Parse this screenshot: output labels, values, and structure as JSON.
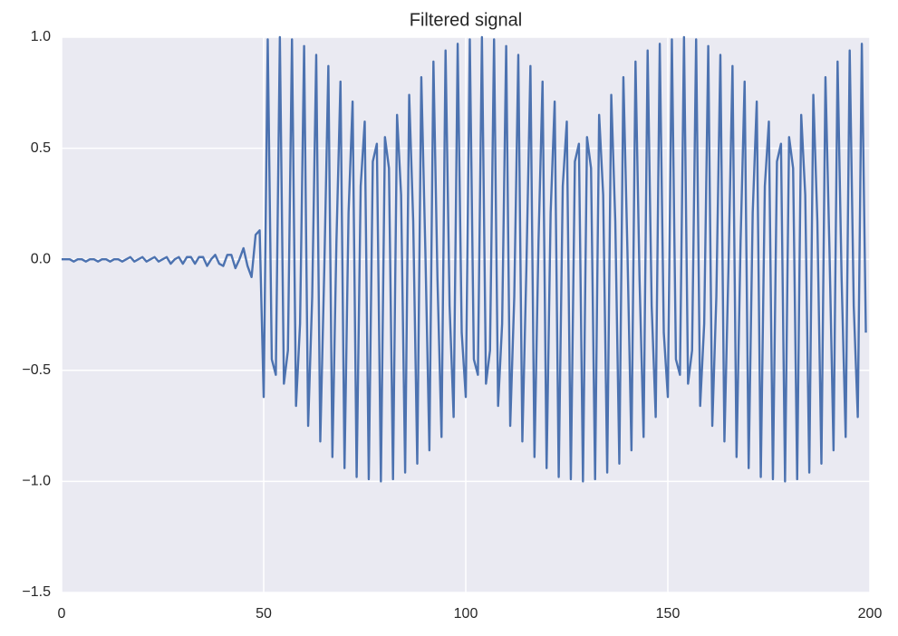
{
  "chart_data": {
    "type": "line",
    "title": "Filtered signal",
    "x": [
      0,
      1,
      2,
      3,
      4,
      5,
      6,
      7,
      8,
      9,
      10,
      11,
      12,
      13,
      14,
      15,
      16,
      17,
      18,
      19,
      20,
      21,
      22,
      23,
      24,
      25,
      26,
      27,
      28,
      29,
      30,
      31,
      32,
      33,
      34,
      35,
      36,
      37,
      38,
      39,
      40,
      41,
      42,
      43,
      44,
      45,
      46,
      47,
      48,
      49,
      50,
      51,
      52,
      53,
      54,
      55,
      56,
      57,
      58,
      59,
      60,
      61,
      62,
      63,
      64,
      65,
      66,
      67,
      68,
      69,
      70,
      71,
      72,
      73,
      74,
      75,
      76,
      77,
      78,
      79,
      80,
      81,
      82,
      83,
      84,
      85,
      86,
      87,
      88,
      89,
      90,
      91,
      92,
      93,
      94,
      95,
      96,
      97,
      98,
      99,
      100,
      101,
      102,
      103,
      104,
      105,
      106,
      107,
      108,
      109,
      110,
      111,
      112,
      113,
      114,
      115,
      116,
      117,
      118,
      119,
      120,
      121,
      122,
      123,
      124,
      125,
      126,
      127,
      128,
      129,
      130,
      131,
      132,
      133,
      134,
      135,
      136,
      137,
      138,
      139,
      140,
      141,
      142,
      143,
      144,
      145,
      146,
      147,
      148,
      149,
      150,
      151,
      152,
      153,
      154,
      155,
      156,
      157,
      158,
      159,
      160,
      161,
      162,
      163,
      164,
      165,
      166,
      167,
      168,
      169,
      170,
      171,
      172,
      173,
      174,
      175,
      176,
      177,
      178,
      179,
      180,
      181,
      182,
      183,
      184,
      185,
      186,
      187,
      188,
      189,
      190,
      191,
      192,
      193,
      194,
      195,
      196,
      197,
      198,
      199
    ],
    "series": [
      {
        "color": "#4c72b0",
        "values": [
          0.0,
          0.0,
          0.0,
          -0.01,
          0.0,
          0.0,
          -0.01,
          0.0,
          0.0,
          -0.01,
          0.0,
          0.0,
          -0.01,
          0.0,
          0.0,
          -0.01,
          0.0,
          0.01,
          -0.01,
          0.0,
          0.01,
          -0.01,
          0.0,
          0.01,
          -0.01,
          0.0,
          0.01,
          -0.02,
          0.0,
          0.01,
          -0.02,
          0.01,
          0.01,
          -0.02,
          0.01,
          0.01,
          -0.03,
          0.0,
          0.02,
          -0.02,
          -0.03,
          0.02,
          0.02,
          -0.04,
          0.0,
          0.05,
          -0.03,
          -0.08,
          0.11,
          0.13,
          -0.62,
          0.99,
          -0.45,
          -0.52,
          1.0,
          -0.56,
          -0.41,
          0.99,
          -0.66,
          -0.29,
          0.96,
          -0.75,
          -0.17,
          0.92,
          -0.82,
          -0.04,
          0.87,
          -0.89,
          0.08,
          0.8,
          -0.94,
          0.21,
          0.71,
          -0.98,
          0.33,
          0.62,
          -0.99,
          0.44,
          0.52,
          -1.0,
          0.55,
          0.41,
          -0.99,
          0.65,
          0.29,
          -0.96,
          0.74,
          0.17,
          -0.92,
          0.82,
          0.04,
          -0.86,
          0.89,
          -0.09,
          -0.8,
          0.94,
          -0.21,
          -0.71,
          0.97,
          -0.33,
          -0.62,
          0.99,
          -0.45,
          -0.52,
          1.0,
          -0.56,
          -0.41,
          0.99,
          -0.66,
          -0.29,
          0.96,
          -0.75,
          -0.17,
          0.92,
          -0.82,
          -0.04,
          0.87,
          -0.89,
          0.08,
          0.8,
          -0.94,
          0.21,
          0.71,
          -0.98,
          0.33,
          0.62,
          -0.99,
          0.44,
          0.52,
          -1.0,
          0.55,
          0.41,
          -0.99,
          0.65,
          0.29,
          -0.96,
          0.74,
          0.17,
          -0.92,
          0.82,
          0.04,
          -0.86,
          0.89,
          -0.09,
          -0.8,
          0.94,
          -0.21,
          -0.71,
          0.97,
          -0.33,
          -0.62,
          0.99,
          -0.45,
          -0.52,
          1.0,
          -0.56,
          -0.41,
          0.99,
          -0.66,
          -0.29,
          0.96,
          -0.75,
          -0.17,
          0.92,
          -0.82,
          -0.04,
          0.87,
          -0.89,
          0.08,
          0.8,
          -0.94,
          0.21,
          0.71,
          -0.98,
          0.33,
          0.62,
          -0.99,
          0.44,
          0.52,
          -1.0,
          0.55,
          0.41,
          -0.99,
          0.65,
          0.29,
          -0.96,
          0.74,
          0.17,
          -0.92,
          0.82,
          0.04,
          -0.86,
          0.89,
          -0.09,
          -0.8,
          0.94,
          -0.21,
          -0.71,
          0.97,
          -0.33
        ]
      }
    ],
    "xlim": [
      0,
      200
    ],
    "xticks": [
      0,
      50,
      100,
      150,
      200
    ],
    "ylim": [
      -1.5,
      1
    ],
    "yticks": [
      {
        "value": -1.5,
        "label": "−1.5"
      },
      {
        "value": -1,
        "label": "−1.0"
      },
      {
        "value": -0.5,
        "label": "−0.5"
      },
      {
        "value": 0,
        "label": "0.0"
      },
      {
        "value": 0.5,
        "label": "0.5"
      },
      {
        "value": 1,
        "label": "1.0"
      }
    ],
    "grid": true
  }
}
